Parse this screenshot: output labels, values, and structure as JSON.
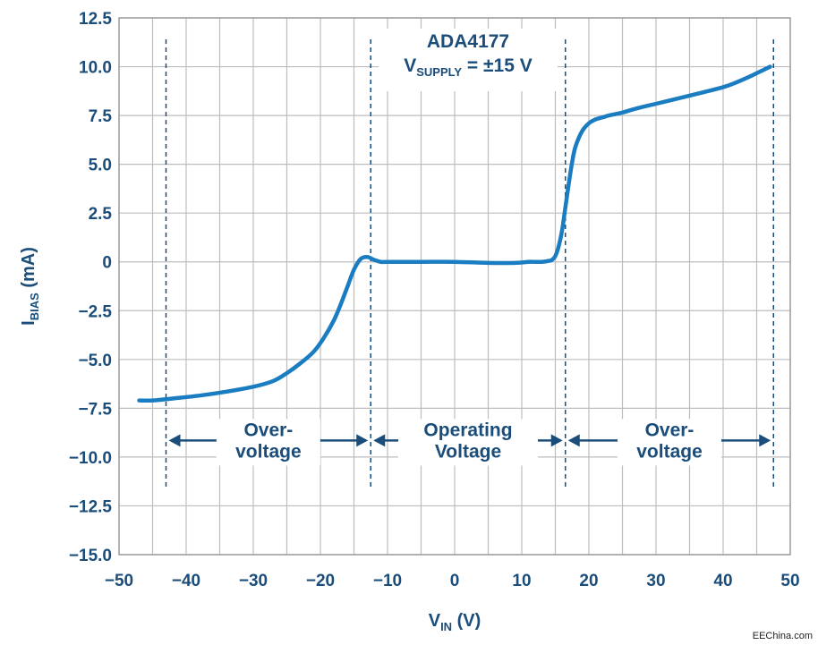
{
  "chart_data": {
    "type": "line",
    "title": "ADA4177",
    "subtitle": {
      "main": "V",
      "sub": "SUPPLY",
      "rest": " =  ±15 V"
    },
    "xlabel": {
      "main": "V",
      "sub": "IN",
      "rest": " (V)"
    },
    "ylabel": {
      "main": "I",
      "sub": "BIAS",
      "rest": " (mA)"
    },
    "xlim": [
      -50,
      50
    ],
    "ylim": [
      -15,
      12.5
    ],
    "xticks": [
      -50,
      -40,
      -30,
      -20,
      -10,
      0,
      10,
      20,
      30,
      40,
      50
    ],
    "xtick_labels": [
      "−50",
      "−40",
      "−30",
      "−20",
      "−10",
      "0",
      "10",
      "20",
      "30",
      "40",
      "50"
    ],
    "yticks": [
      12.5,
      10,
      7.5,
      5,
      2.5,
      0,
      -2.5,
      -5,
      -7.5,
      -10,
      -12.5,
      -15
    ],
    "ytick_labels": [
      "12.5",
      "10.0",
      "7.5",
      "5.0",
      "2.5",
      "0",
      "−2.5",
      "−5.0",
      "−7.5",
      "−10.0",
      "−12.5",
      "−15.0"
    ],
    "grid": true,
    "series": [
      {
        "color": "#1a7cc1",
        "x": [
          -47,
          -45,
          -42,
          -38,
          -34,
          -30,
          -27,
          -25,
          -23,
          -21,
          -19.5,
          -18,
          -17,
          -16,
          -15,
          -14,
          -13,
          -12,
          -11,
          -10,
          -5,
          0,
          5,
          9,
          11,
          12,
          13,
          14,
          14.5,
          15,
          15.5,
          16,
          16.5,
          17,
          17.5,
          18,
          19,
          20,
          21,
          22,
          23,
          25,
          27,
          30,
          33,
          36,
          40,
          42,
          44,
          45.5,
          47
        ],
        "y": [
          -7.1,
          -7.1,
          -7.0,
          -6.85,
          -6.65,
          -6.4,
          -6.1,
          -5.7,
          -5.2,
          -4.6,
          -3.9,
          -3.0,
          -2.2,
          -1.3,
          -0.4,
          0.15,
          0.25,
          0.1,
          0.0,
          0.0,
          0.0,
          0.0,
          -0.05,
          -0.05,
          0.0,
          0.0,
          0.0,
          0.05,
          0.1,
          0.3,
          0.8,
          1.6,
          2.8,
          4.0,
          5.1,
          5.9,
          6.7,
          7.1,
          7.3,
          7.4,
          7.5,
          7.65,
          7.85,
          8.1,
          8.35,
          8.6,
          8.95,
          9.2,
          9.5,
          9.75,
          10.0
        ]
      }
    ],
    "markers_x": [
      -43,
      -12.5,
      16.5,
      47.5
    ],
    "regions": [
      {
        "line1": "Over-",
        "line2": "voltage",
        "from": -43,
        "to": -12.5
      },
      {
        "line1": "Operating",
        "line2": "Voltage",
        "from": -12.5,
        "to": 16.5
      },
      {
        "line1": "Over-",
        "line2": "voltage",
        "from": 16.5,
        "to": 47.5
      }
    ],
    "region_arrow_y": -9.15
  },
  "colors": {
    "text": "#1b4d7a",
    "grid": "#bdbdbd",
    "curve": "#1a7cc1",
    "annot": "#1b4d7a"
  },
  "watermark": "EEChina.com"
}
